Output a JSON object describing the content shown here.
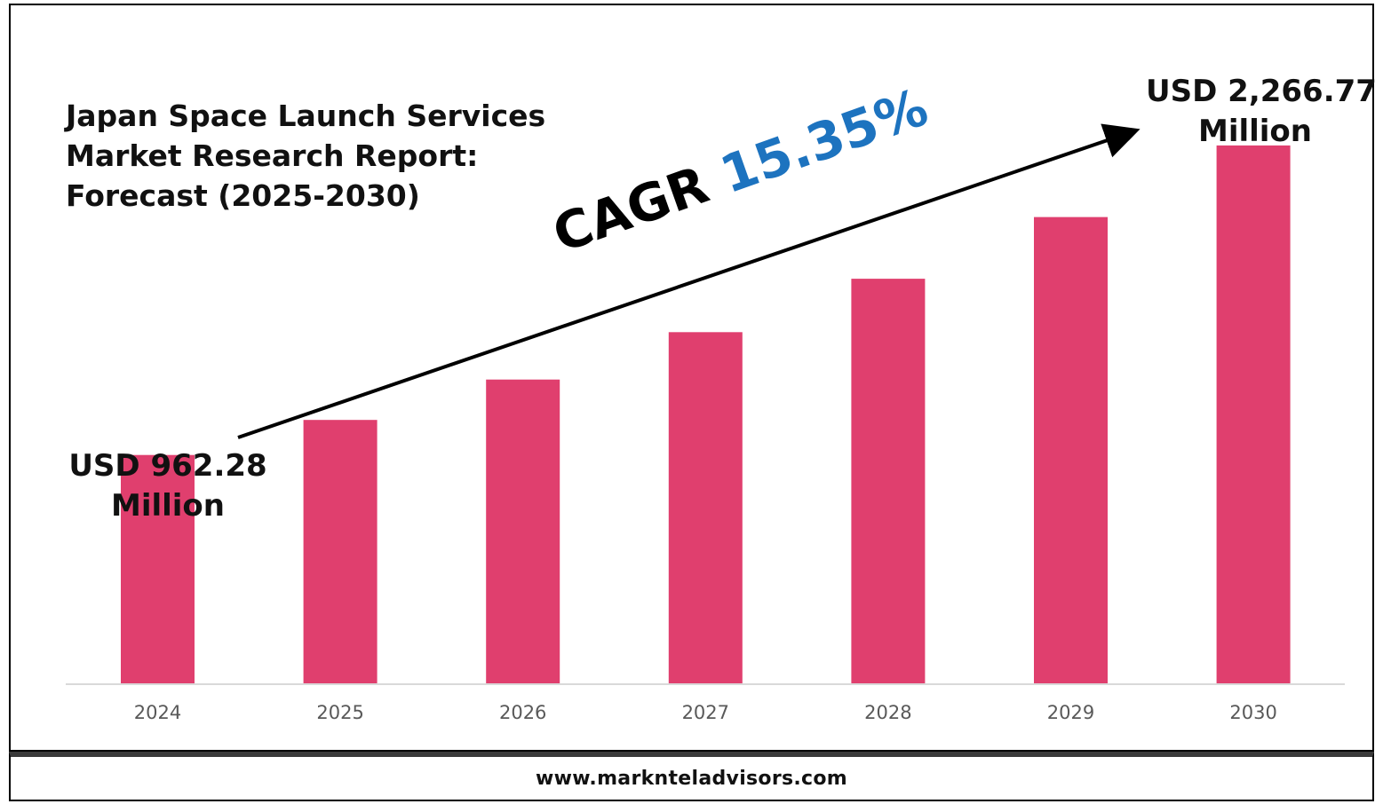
{
  "title_lines": [
    "Japan Space Launch Services",
    "Market Research Report:",
    "Forecast (2025-2030)"
  ],
  "cagr": {
    "prefix": "CAGR",
    "value": "15.35%"
  },
  "annotations": {
    "start": [
      "USD 962.28",
      "Million"
    ],
    "end": [
      "USD 2,266.77",
      "Million"
    ]
  },
  "footer": "www.marknteladvisors.com",
  "colors": {
    "bar": "#e03f6e",
    "cagr_value": "#1d73bf",
    "axis": "#d9d9d9",
    "tick_label": "#595959"
  },
  "chart_data": {
    "type": "bar",
    "title": "Japan Space Launch Services Market Research Report: Forecast (2025-2030)",
    "categories": [
      "2024",
      "2025",
      "2026",
      "2027",
      "2028",
      "2029",
      "2030"
    ],
    "values": [
      962.28,
      1110,
      1280,
      1480,
      1705,
      1965,
      2266.77
    ],
    "ylim": [
      0,
      2300
    ],
    "xlabel": "",
    "ylabel": "",
    "grid": false,
    "legend": "none"
  }
}
